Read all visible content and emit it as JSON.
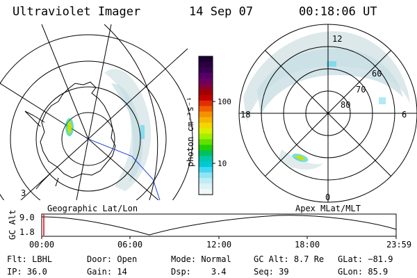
{
  "header": {
    "instrument": "Ultraviolet Imager",
    "date": "14 Sep 07",
    "time": "00:18:06 UT"
  },
  "colorbar": {
    "unit_label": "photon cm⁻²s⁻¹",
    "tick_labels": [
      "100",
      "10"
    ],
    "colors": [
      "#1a0033",
      "#2a0040",
      "#3a0050",
      "#55006a",
      "#6a0060",
      "#880038",
      "#a00000",
      "#c20000",
      "#e03000",
      "#f06000",
      "#f59000",
      "#f5b400",
      "#f0d800",
      "#d8f000",
      "#a0f000",
      "#60e000",
      "#20d000",
      "#00c060",
      "#00c8a8",
      "#00c8d8",
      "#40d8f0",
      "#90e4f4",
      "#c0ecf4",
      "#dcf2f6",
      "#eef8f8"
    ]
  },
  "left_map": {
    "caption": "Geographic Lat/Lon",
    "corner_label": "3"
  },
  "right_map": {
    "caption": "Apex MLat/MLT",
    "mlt_labels": {
      "top": "12",
      "left": "18",
      "right": "6",
      "bottom": "0"
    },
    "lat_labels": [
      "60",
      "70",
      "80"
    ]
  },
  "orbit_plot": {
    "ylabel": "GC Alt",
    "y_ticks": [
      "9.0",
      "1.8"
    ],
    "x_ticks": [
      "00:00",
      "06:00",
      "12:00",
      "18:00",
      "23:59"
    ]
  },
  "info": {
    "filter": {
      "label": "Flt:",
      "value": "LBHL"
    },
    "ip": {
      "label": "IP:",
      "value": "36.0"
    },
    "door": {
      "label": "Door:",
      "value": "Open"
    },
    "gain": {
      "label": "Gain:",
      "value": "14"
    },
    "mode": {
      "label": "Mode:",
      "value": "Normal"
    },
    "dsp": {
      "label": "Dsp:",
      "value": "3.4"
    },
    "gc_alt": {
      "label": "GC Alt:",
      "value": "8.7 Re"
    },
    "seq": {
      "label": "Seq:",
      "value": "39"
    },
    "glat": {
      "label": "GLat:",
      "value": "−81.9"
    },
    "glon": {
      "label": "GLon:",
      "value": "85.9"
    }
  }
}
